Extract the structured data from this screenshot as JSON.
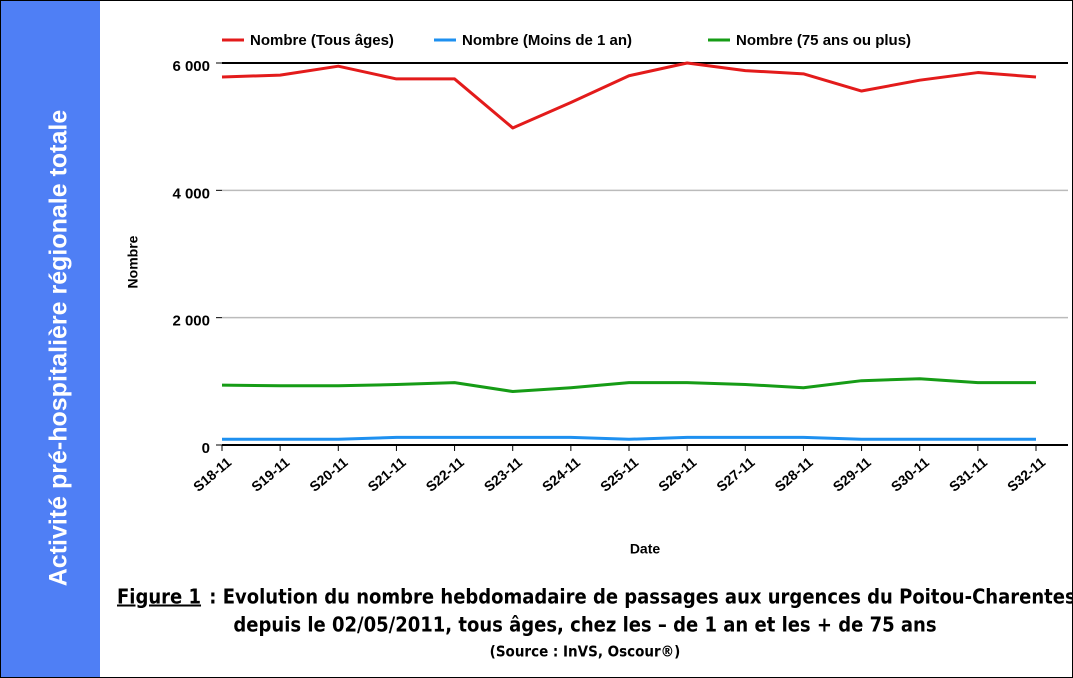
{
  "side_title": "Activité pré-hospitalière régionale totale",
  "chart_data": {
    "type": "line",
    "y_label": "Nombre",
    "x_label": "Date",
    "categories": [
      "S18-11",
      "S19-11",
      "S20-11",
      "S21-11",
      "S22-11",
      "S23-11",
      "S24-11",
      "S25-11",
      "S26-11",
      "S27-11",
      "S28-11",
      "S29-11",
      "S30-11",
      "S31-11",
      "S32-11"
    ],
    "series": [
      {
        "name": "Nombre (Tous âges)",
        "color": "#e31b1b",
        "values": [
          5780,
          5810,
          5950,
          5750,
          5750,
          4980,
          5380,
          5800,
          6000,
          5880,
          5830,
          5560,
          5730,
          5850,
          5780
        ]
      },
      {
        "name": "Nombre (Moins de 1 an)",
        "color": "#1e90f0",
        "values": [
          90,
          90,
          90,
          120,
          120,
          120,
          120,
          90,
          120,
          120,
          120,
          90,
          90,
          90,
          90
        ]
      },
      {
        "name": "Nombre (75 ans ou plus)",
        "color": "#169c16",
        "values": [
          940,
          930,
          930,
          950,
          980,
          840,
          900,
          980,
          980,
          950,
          900,
          1010,
          1040,
          980,
          980
        ]
      }
    ],
    "ylim": [
      0,
      6000
    ],
    "yticks": [
      0,
      {
        "value": 2000,
        "label": "2 000"
      },
      {
        "value": 4000,
        "label": "4 000"
      },
      {
        "value": 6000,
        "label": "6 000"
      }
    ],
    "grid": true,
    "legend": "top"
  },
  "caption": {
    "label": "Figure 1",
    "line1": " : Evolution du nombre hebdomadaire de passages aux urgences du Poitou-Charentes",
    "line2": "depuis le 02/05/2011, tous âges, chez les – de 1 an et les + de 75 ans",
    "source": "(Source : InVS, Oscour®)"
  }
}
